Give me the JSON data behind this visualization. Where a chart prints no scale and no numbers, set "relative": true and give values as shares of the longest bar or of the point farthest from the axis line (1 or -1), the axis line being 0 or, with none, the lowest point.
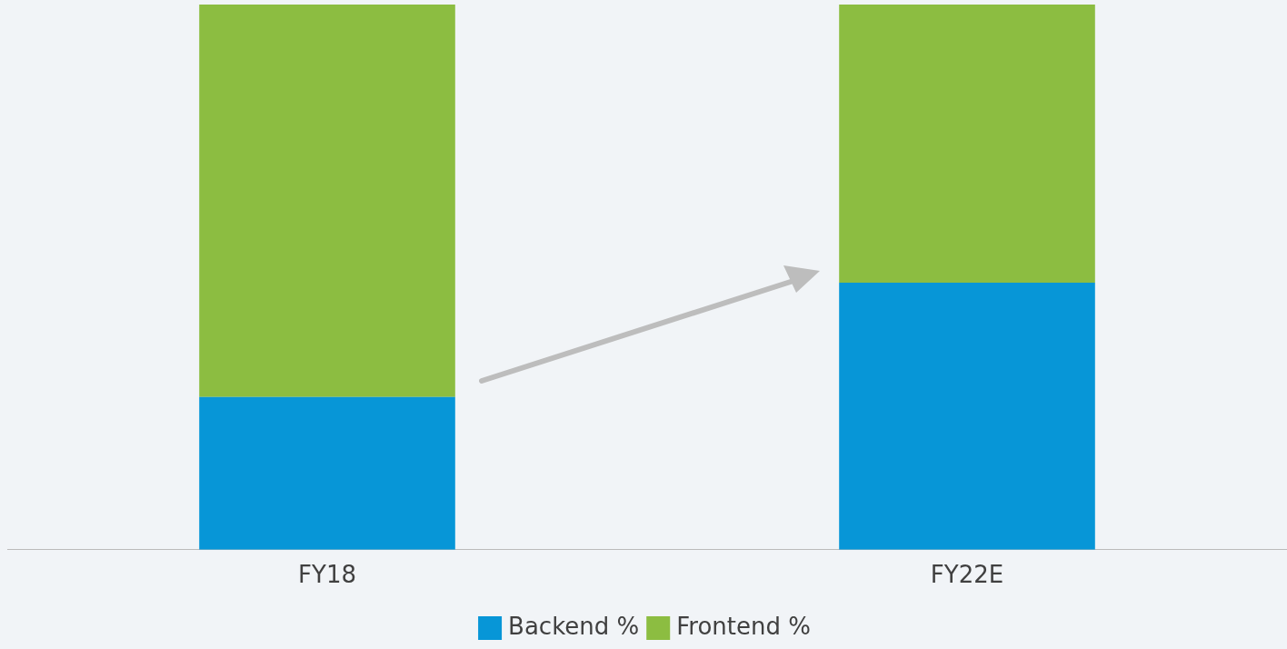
{
  "chart_data": {
    "type": "bar",
    "relative": true,
    "stacked": true,
    "categories": [
      "FY18",
      "FY22E"
    ],
    "series": [
      {
        "name": "Backend %",
        "color": "#0796d7",
        "values": [
          0.28,
          0.49
        ]
      },
      {
        "name": "Frontend %",
        "color": "#8cbd41",
        "values": [
          0.72,
          0.51
        ]
      }
    ],
    "legend": "bottom"
  }
}
